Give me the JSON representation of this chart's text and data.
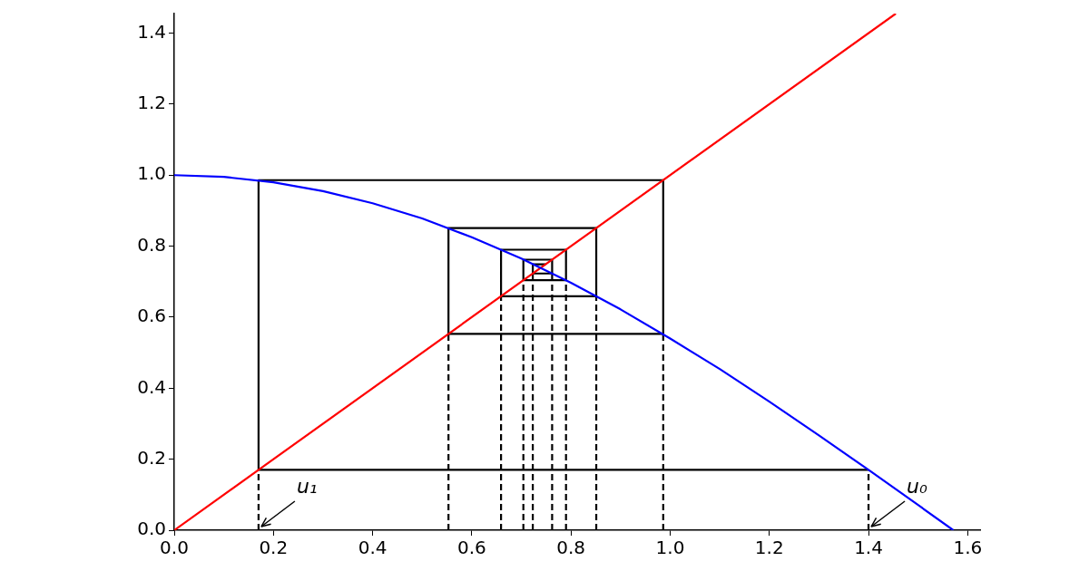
{
  "chart_data": {
    "type": "line",
    "xlim": [
      0,
      1.625
    ],
    "ylim": [
      0,
      1.455
    ],
    "xticks": [
      {
        "value": 0,
        "label": "0.0"
      },
      {
        "value": 0.2,
        "label": "0.2"
      },
      {
        "value": 0.4,
        "label": "0.4"
      },
      {
        "value": 0.6,
        "label": "0.6"
      },
      {
        "value": 0.8,
        "label": "0.8"
      },
      {
        "value": 1,
        "label": "1.0"
      },
      {
        "value": 1.2,
        "label": "1.2"
      },
      {
        "value": 1.4,
        "label": "1.4"
      },
      {
        "value": 1.6,
        "label": "1.6"
      }
    ],
    "yticks": [
      {
        "value": 0,
        "label": "0.0"
      },
      {
        "value": 0.2,
        "label": "0.2"
      },
      {
        "value": 0.4,
        "label": "0.4"
      },
      {
        "value": 0.6,
        "label": "0.6"
      },
      {
        "value": 0.8,
        "label": "0.8"
      },
      {
        "value": 1,
        "label": "1.0"
      },
      {
        "value": 1.2,
        "label": "1.2"
      },
      {
        "value": 1.4,
        "label": "1.4"
      }
    ],
    "grid": false,
    "legend": false,
    "marker": "none",
    "series": [
      {
        "color": "#0000ff",
        "x": [
          0,
          0.1,
          0.2,
          0.3,
          0.4,
          0.5,
          0.6,
          0.7,
          0.8,
          0.9,
          1.0,
          1.1,
          1.2,
          1.3,
          1.4,
          1.5,
          1.571
        ],
        "values": [
          1,
          0.995,
          0.98,
          0.955,
          0.921,
          0.878,
          0.825,
          0.765,
          0.697,
          0.622,
          0.54,
          0.454,
          0.362,
          0.267,
          0.17,
          0.071,
          0
        ]
      },
      {
        "color": "#ff0000",
        "x": [
          0,
          1.455
        ],
        "values": [
          0,
          1.455
        ]
      },
      {
        "color": "#000000",
        "x": [
          1.4,
          0.17,
          0.17,
          0.986,
          0.986,
          0.553,
          0.553,
          0.851,
          0.851,
          0.659,
          0.659,
          0.79,
          0.79,
          0.704,
          0.704,
          0.762,
          0.762,
          0.723,
          0.723,
          0.749
        ],
        "values": [
          0.17,
          0.17,
          0.986,
          0.986,
          0.553,
          0.553,
          0.851,
          0.851,
          0.659,
          0.659,
          0.79,
          0.79,
          0.704,
          0.704,
          0.762,
          0.762,
          0.723,
          0.723,
          0.749,
          0.749
        ]
      },
      {
        "color": "#000000",
        "line_style": "dashed",
        "x": [
          1.4,
          1.4
        ],
        "values": [
          0,
          0.17
        ]
      },
      {
        "color": "#000000",
        "line_style": "dashed",
        "x": [
          0.17,
          0.17
        ],
        "values": [
          0,
          0.17
        ]
      },
      {
        "color": "#000000",
        "line_style": "dashed",
        "x": [
          0.986,
          0.986
        ],
        "values": [
          0,
          0.553
        ]
      },
      {
        "color": "#000000",
        "line_style": "dashed",
        "x": [
          0.553,
          0.553
        ],
        "values": [
          0,
          0.553
        ]
      },
      {
        "color": "#000000",
        "line_style": "dashed",
        "x": [
          0.851,
          0.851
        ],
        "values": [
          0,
          0.659
        ]
      },
      {
        "color": "#000000",
        "line_style": "dashed",
        "x": [
          0.659,
          0.659
        ],
        "values": [
          0,
          0.659
        ]
      },
      {
        "color": "#000000",
        "line_style": "dashed",
        "x": [
          0.79,
          0.79
        ],
        "values": [
          0,
          0.704
        ]
      },
      {
        "color": "#000000",
        "line_style": "dashed",
        "x": [
          0.704,
          0.704
        ],
        "values": [
          0,
          0.704
        ]
      },
      {
        "color": "#000000",
        "line_style": "dashed",
        "x": [
          0.762,
          0.762
        ],
        "values": [
          0,
          0.723
        ]
      },
      {
        "color": "#000000",
        "line_style": "dashed",
        "x": [
          0.723,
          0.723
        ],
        "values": [
          0,
          0.723
        ]
      }
    ],
    "annotations": [
      {
        "text": "u₀",
        "x": 1.4,
        "y": 0
      },
      {
        "text": "u₁",
        "x": 0.17,
        "y": 0
      }
    ]
  }
}
